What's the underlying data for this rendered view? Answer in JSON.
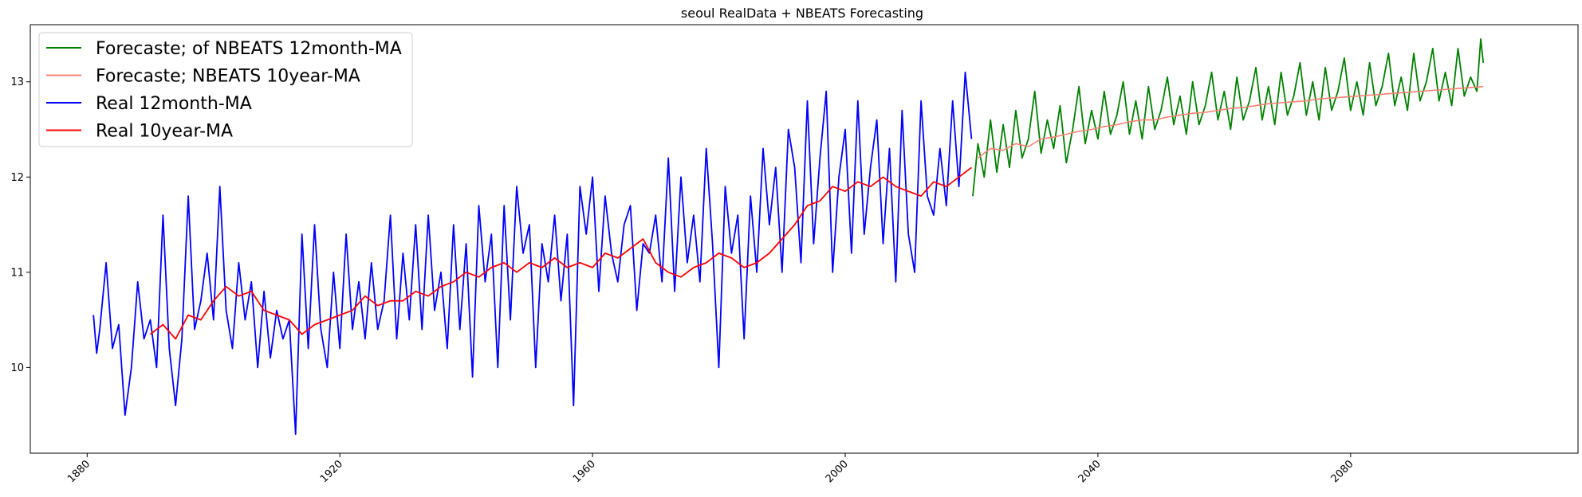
{
  "chart_data": {
    "type": "line",
    "title": "seoul RealData + NBEATS Forecasting",
    "xlabel": "",
    "ylabel": "",
    "xlim": [
      1871,
      2116
    ],
    "ylim": [
      9.1,
      13.6
    ],
    "x_ticks": [
      {
        "value": 1880,
        "label": "1880"
      },
      {
        "value": 1920,
        "label": "1920"
      },
      {
        "value": 1960,
        "label": "1960"
      },
      {
        "value": 2000,
        "label": "2000"
      },
      {
        "value": 2040,
        "label": "2040"
      },
      {
        "value": 2080,
        "label": "2080"
      }
    ],
    "y_ticks": [
      {
        "value": 10,
        "label": "10"
      },
      {
        "value": 11,
        "label": "11"
      },
      {
        "value": 12,
        "label": "12"
      },
      {
        "value": 13,
        "label": "13"
      }
    ],
    "grid": false,
    "legend_position": "top-left",
    "series": [
      {
        "name": "Forecaste; of NBEATS 12month-MA",
        "color": "#008000",
        "x": [
          2020.2,
          2021.0,
          2022.0,
          2023.0,
          2024.0,
          2025.0,
          2026.0,
          2027.0,
          2028.0,
          2029.0,
          2030.0,
          2031.0,
          2032.0,
          2033.0,
          2034.0,
          2035.0,
          2036.0,
          2037.0,
          2038.0,
          2039.0,
          2040.0,
          2041.0,
          2042.0,
          2043.0,
          2044.0,
          2045.0,
          2046.0,
          2047.0,
          2048.0,
          2049.0,
          2050.0,
          2051.0,
          2052.0,
          2053.0,
          2054.0,
          2055.0,
          2056.0,
          2057.0,
          2058.0,
          2059.0,
          2060.0,
          2061.0,
          2062.0,
          2063.0,
          2064.0,
          2065.0,
          2066.0,
          2067.0,
          2068.0,
          2069.0,
          2070.0,
          2071.0,
          2072.0,
          2073.0,
          2074.0,
          2075.0,
          2076.0,
          2077.0,
          2078.0,
          2079.0,
          2080.0,
          2081.0,
          2082.0,
          2083.0,
          2084.0,
          2085.0,
          2086.0,
          2087.0,
          2088.0,
          2089.0,
          2090.0,
          2091.0,
          2092.0,
          2093.0,
          2094.0,
          2095.0,
          2096.0,
          2097.0,
          2098.0,
          2099.0,
          2100.0,
          2100.6,
          2101.0
        ],
        "y": [
          11.8,
          12.35,
          12.0,
          12.6,
          12.05,
          12.55,
          12.1,
          12.7,
          12.2,
          12.4,
          12.9,
          12.25,
          12.6,
          12.3,
          12.75,
          12.15,
          12.5,
          12.95,
          12.35,
          12.7,
          12.4,
          12.9,
          12.45,
          12.65,
          13.0,
          12.45,
          12.8,
          12.4,
          12.95,
          12.5,
          12.7,
          13.05,
          12.55,
          12.85,
          12.45,
          13.0,
          12.55,
          12.75,
          13.1,
          12.6,
          12.9,
          12.5,
          13.05,
          12.6,
          12.8,
          13.15,
          12.6,
          12.95,
          12.55,
          13.1,
          12.65,
          12.85,
          13.2,
          12.65,
          13.0,
          12.6,
          13.15,
          12.7,
          12.9,
          13.25,
          12.7,
          13.0,
          12.65,
          13.2,
          12.75,
          12.95,
          13.3,
          12.75,
          13.05,
          12.7,
          13.3,
          12.8,
          13.0,
          13.35,
          12.8,
          13.1,
          12.75,
          13.35,
          12.85,
          13.05,
          12.9,
          13.45,
          13.2
        ]
      },
      {
        "name": "Forecaste; NBEATS 10year-MA",
        "color": "#fa8072",
        "x": [
          2021.0,
          2023.0,
          2025.0,
          2027.0,
          2029.0,
          2031.0,
          2033.0,
          2035.0,
          2037.0,
          2039.0,
          2041.0,
          2043.0,
          2045.0,
          2047.0,
          2049.0,
          2051.0,
          2053.0,
          2055.0,
          2057.0,
          2059.0,
          2061.0,
          2063.0,
          2065.0,
          2067.0,
          2069.0,
          2071.0,
          2073.0,
          2075.0,
          2077.0,
          2079.0,
          2081.0,
          2083.0,
          2085.0,
          2087.0,
          2089.0,
          2091.0,
          2093.0,
          2095.0,
          2097.0,
          2099.0,
          2101.0
        ],
        "y": [
          12.2,
          12.3,
          12.28,
          12.35,
          12.32,
          12.4,
          12.42,
          12.45,
          12.48,
          12.5,
          12.53,
          12.55,
          12.58,
          12.6,
          12.6,
          12.63,
          12.65,
          12.67,
          12.68,
          12.7,
          12.72,
          12.73,
          12.75,
          12.77,
          12.78,
          12.79,
          12.8,
          12.82,
          12.83,
          12.84,
          12.85,
          12.86,
          12.87,
          12.88,
          12.89,
          12.9,
          12.91,
          12.92,
          12.93,
          12.94,
          12.95
        ]
      },
      {
        "name": "Real 12month-MA",
        "color": "#0000ff",
        "x": [
          1881.0,
          1881.5,
          1882.0,
          1883.0,
          1884.0,
          1885.0,
          1886.0,
          1887.0,
          1888.0,
          1889.0,
          1890.0,
          1891.0,
          1892.0,
          1893.0,
          1894.0,
          1895.0,
          1896.0,
          1897.0,
          1898.0,
          1899.0,
          1900.0,
          1901.0,
          1902.0,
          1903.0,
          1904.0,
          1905.0,
          1906.0,
          1907.0,
          1908.0,
          1909.0,
          1910.0,
          1911.0,
          1912.0,
          1913.0,
          1914.0,
          1915.0,
          1916.0,
          1917.0,
          1918.0,
          1919.0,
          1920.0,
          1921.0,
          1922.0,
          1923.0,
          1924.0,
          1925.0,
          1926.0,
          1927.0,
          1928.0,
          1929.0,
          1930.0,
          1931.0,
          1932.0,
          1933.0,
          1934.0,
          1935.0,
          1936.0,
          1937.0,
          1938.0,
          1939.0,
          1940.0,
          1941.0,
          1942.0,
          1943.0,
          1944.0,
          1945.0,
          1946.0,
          1947.0,
          1948.0,
          1949.0,
          1950.0,
          1951.0,
          1952.0,
          1953.0,
          1954.0,
          1955.0,
          1956.0,
          1957.0,
          1958.0,
          1959.0,
          1960.0,
          1961.0,
          1962.0,
          1963.0,
          1964.0,
          1965.0,
          1966.0,
          1967.0,
          1968.0,
          1969.0,
          1970.0,
          1971.0,
          1972.0,
          1973.0,
          1974.0,
          1975.0,
          1976.0,
          1977.0,
          1978.0,
          1979.0,
          1980.0,
          1981.0,
          1982.0,
          1983.0,
          1984.0,
          1985.0,
          1986.0,
          1987.0,
          1988.0,
          1989.0,
          1990.0,
          1991.0,
          1992.0,
          1993.0,
          1994.0,
          1995.0,
          1996.0,
          1997.0,
          1998.0,
          1999.0,
          2000.0,
          2001.0,
          2002.0,
          2003.0,
          2004.0,
          2005.0,
          2006.0,
          2007.0,
          2008.0,
          2009.0,
          2010.0,
          2011.0,
          2012.0,
          2013.0,
          2014.0,
          2015.0,
          2016.0,
          2017.0,
          2018.0,
          2019.0,
          2020.0
        ],
        "y": [
          10.55,
          10.15,
          10.4,
          11.1,
          10.2,
          10.45,
          9.5,
          10.0,
          10.9,
          10.3,
          10.5,
          10.0,
          11.6,
          10.2,
          9.6,
          10.3,
          11.8,
          10.4,
          10.7,
          11.2,
          10.5,
          11.9,
          10.6,
          10.2,
          11.1,
          10.5,
          10.9,
          10.0,
          10.8,
          10.1,
          10.6,
          10.3,
          10.5,
          9.3,
          11.4,
          10.2,
          11.5,
          10.4,
          10.0,
          11.0,
          10.2,
          11.4,
          10.4,
          10.9,
          10.3,
          11.1,
          10.4,
          10.7,
          11.6,
          10.3,
          11.2,
          10.5,
          11.5,
          10.4,
          11.6,
          10.6,
          11.0,
          10.2,
          11.5,
          10.4,
          11.3,
          9.9,
          11.7,
          10.9,
          11.4,
          10.0,
          11.7,
          10.5,
          11.9,
          11.2,
          11.5,
          10.0,
          11.3,
          10.9,
          11.6,
          10.7,
          11.4,
          9.6,
          11.9,
          11.4,
          12.0,
          10.8,
          11.8,
          11.2,
          10.9,
          11.5,
          11.7,
          10.6,
          11.3,
          11.2,
          11.6,
          10.9,
          12.2,
          10.8,
          12.0,
          11.1,
          11.6,
          10.9,
          12.3,
          11.3,
          10.0,
          11.9,
          11.2,
          11.6,
          10.3,
          11.8,
          11.0,
          12.3,
          11.5,
          12.1,
          11.0,
          12.5,
          12.1,
          11.1,
          12.8,
          11.3,
          12.2,
          12.9,
          11.0,
          12.0,
          12.5,
          11.2,
          12.8,
          11.4,
          12.1,
          12.6,
          11.3,
          12.3,
          10.9,
          12.7,
          11.4,
          11.0,
          12.8,
          11.8,
          11.6,
          12.3,
          11.7,
          12.8,
          11.9,
          13.1,
          12.4
        ]
      },
      {
        "name": "Real 10year-MA",
        "color": "#ff0000",
        "x": [
          1890.0,
          1892.0,
          1894.0,
          1896.0,
          1898.0,
          1900.0,
          1902.0,
          1904.0,
          1906.0,
          1908.0,
          1910.0,
          1912.0,
          1914.0,
          1916.0,
          1918.0,
          1920.0,
          1922.0,
          1924.0,
          1926.0,
          1928.0,
          1930.0,
          1932.0,
          1934.0,
          1936.0,
          1938.0,
          1940.0,
          1942.0,
          1944.0,
          1946.0,
          1948.0,
          1950.0,
          1952.0,
          1954.0,
          1956.0,
          1958.0,
          1960.0,
          1962.0,
          1964.0,
          1966.0,
          1968.0,
          1970.0,
          1972.0,
          1974.0,
          1976.0,
          1978.0,
          1980.0,
          1982.0,
          1984.0,
          1986.0,
          1988.0,
          1990.0,
          1992.0,
          1994.0,
          1996.0,
          1998.0,
          2000.0,
          2002.0,
          2004.0,
          2006.0,
          2008.0,
          2010.0,
          2012.0,
          2014.0,
          2016.0,
          2018.0,
          2020.0
        ],
        "y": [
          10.35,
          10.45,
          10.3,
          10.55,
          10.5,
          10.7,
          10.85,
          10.75,
          10.8,
          10.6,
          10.55,
          10.5,
          10.35,
          10.45,
          10.5,
          10.55,
          10.6,
          10.75,
          10.65,
          10.7,
          10.7,
          10.8,
          10.75,
          10.85,
          10.9,
          11.0,
          10.95,
          11.05,
          11.1,
          11.0,
          11.1,
          11.05,
          11.15,
          11.05,
          11.1,
          11.05,
          11.2,
          11.15,
          11.25,
          11.35,
          11.1,
          11.0,
          10.95,
          11.05,
          11.1,
          11.2,
          11.15,
          11.05,
          11.1,
          11.2,
          11.35,
          11.5,
          11.7,
          11.75,
          11.9,
          11.85,
          11.95,
          11.9,
          12.0,
          11.9,
          11.85,
          11.8,
          11.95,
          11.9,
          12.0,
          12.1
        ]
      }
    ]
  }
}
